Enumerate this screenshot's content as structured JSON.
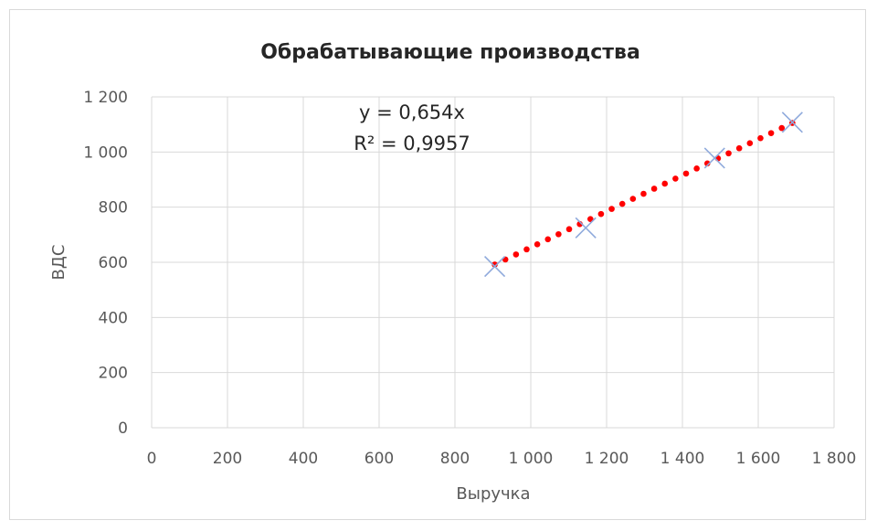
{
  "chart_data": {
    "type": "scatter",
    "title": "Обрабатывающие производства",
    "xlabel": "Выручка",
    "ylabel": "ВДС",
    "xlim": [
      0,
      1800
    ],
    "ylim": [
      0,
      1200
    ],
    "xticks": [
      0,
      200,
      400,
      600,
      800,
      1000,
      1200,
      1400,
      1600,
      1800
    ],
    "yticks": [
      0,
      200,
      400,
      600,
      800,
      1000,
      1200
    ],
    "xtick_labels": [
      "0",
      "200",
      "400",
      "600",
      "800",
      "1 000",
      "1 200",
      "1 400",
      "1 600",
      "1 800"
    ],
    "ytick_labels": [
      "0",
      "200",
      "400",
      "600",
      "800",
      "1 000",
      "1 200"
    ],
    "grid": true,
    "series": [
      {
        "points": [
          {
            "x": 905,
            "y": 585
          },
          {
            "x": 1145,
            "y": 725
          },
          {
            "x": 1485,
            "y": 978
          },
          {
            "x": 1690,
            "y": 1108
          }
        ]
      }
    ],
    "trendline": {
      "type": "linear",
      "slope": 0.654,
      "intercept": 0,
      "x_range": [
        905,
        1690
      ],
      "equation_text": "y = 0,654x",
      "r2_text": "R² = 0,9957"
    },
    "colors": {
      "marker": "#8faadc",
      "trendline": "#ff0000",
      "grid": "#d9d9d9",
      "text": "#595959",
      "title": "#262626"
    }
  }
}
